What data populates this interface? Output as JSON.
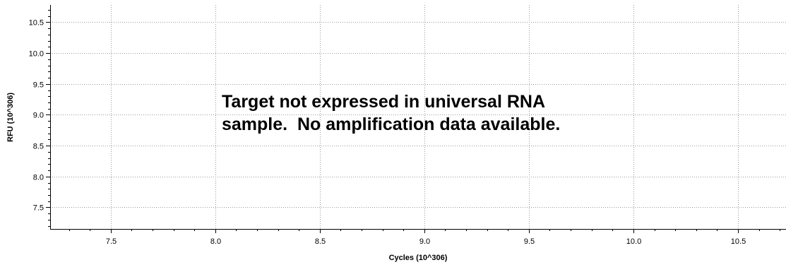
{
  "chart_data": {
    "type": "line",
    "title": "",
    "xlabel": "Cycles (10^306)",
    "ylabel": "RFU (10^306)",
    "xlim": [
      7.21,
      10.73
    ],
    "ylim": [
      7.15,
      10.78
    ],
    "x_ticks": [
      7.5,
      8.0,
      8.5,
      9.0,
      9.5,
      10.0,
      10.5
    ],
    "x_tick_labels": [
      "7.5",
      "8.0",
      "8.5",
      "9.0",
      "9.5",
      "10.0",
      "10.5"
    ],
    "y_ticks": [
      7.5,
      8.0,
      8.5,
      9.0,
      9.5,
      10.0,
      10.5
    ],
    "y_tick_labels": [
      "7.5",
      "8.0",
      "8.5",
      "9.0",
      "9.5",
      "10.0",
      "10.5"
    ],
    "x_minor_step": 0.1,
    "y_minor_step": 0.1,
    "grid": true,
    "series": [],
    "annotation": {
      "line1": "Target not expressed in universal RNA",
      "line2": "sample.  No amplification data available."
    }
  },
  "colors": {
    "axis": "#000000",
    "grid": "#9a9a9a",
    "background": "#ffffff"
  }
}
